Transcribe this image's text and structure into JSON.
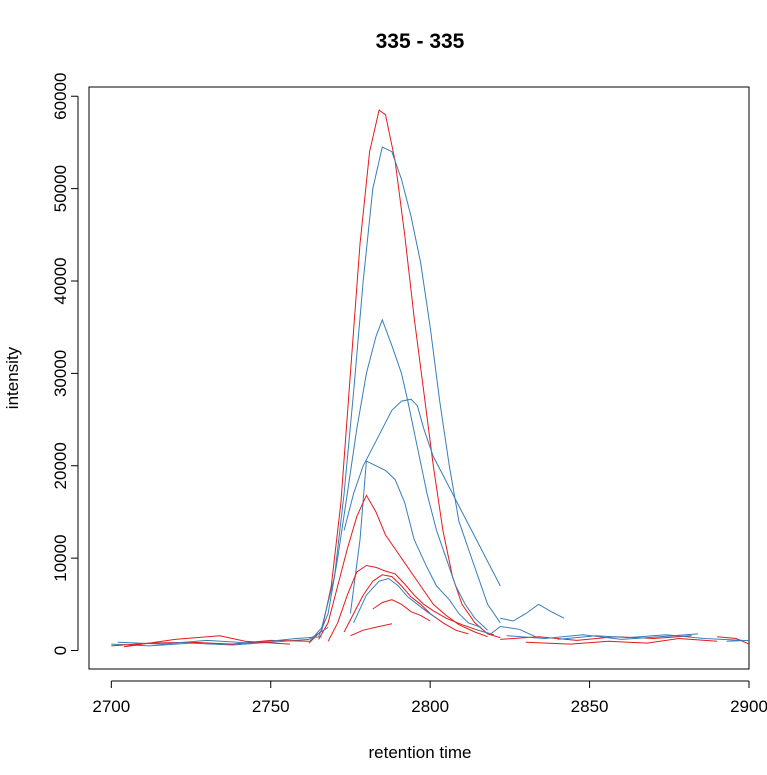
{
  "chart_data": {
    "type": "line",
    "title": "335 - 335",
    "xlabel": "retention time",
    "ylabel": "intensity",
    "xlim": [
      2693,
      2900
    ],
    "ylim": [
      -2000,
      61000
    ],
    "x_ticks": [
      2700,
      2750,
      2800,
      2850,
      2900
    ],
    "y_ticks": [
      0,
      10000,
      20000,
      30000,
      40000,
      50000,
      60000
    ],
    "colors": {
      "red": "#e41a1c",
      "blue": "#377eb8"
    },
    "series": [
      {
        "color": "#e41a1c",
        "points": [
          [
            2762,
            800
          ],
          [
            2766,
            2200
          ],
          [
            2769,
            7000
          ],
          [
            2772,
            16000
          ],
          [
            2775,
            30000
          ],
          [
            2778,
            44000
          ],
          [
            2781,
            54000
          ],
          [
            2784,
            58500
          ],
          [
            2786,
            58000
          ],
          [
            2789,
            53000
          ],
          [
            2792,
            45000
          ],
          [
            2795,
            36000
          ],
          [
            2798,
            28000
          ],
          [
            2801,
            20000
          ],
          [
            2804,
            13000
          ],
          [
            2807,
            8000
          ],
          [
            2810,
            5000
          ],
          [
            2814,
            3000
          ],
          [
            2818,
            1800
          ],
          [
            2822,
            1400
          ]
        ]
      },
      {
        "color": "#377eb8",
        "points": [
          [
            2762,
            900
          ],
          [
            2766,
            2500
          ],
          [
            2770,
            8000
          ],
          [
            2773,
            17000
          ],
          [
            2776,
            28000
          ],
          [
            2779,
            40000
          ],
          [
            2782,
            50000
          ],
          [
            2785,
            54500
          ],
          [
            2788,
            54000
          ],
          [
            2791,
            51000
          ],
          [
            2794,
            47000
          ],
          [
            2797,
            42000
          ],
          [
            2800,
            35000
          ],
          [
            2803,
            27000
          ],
          [
            2806,
            20000
          ],
          [
            2809,
            14000
          ],
          [
            2812,
            11000
          ],
          [
            2815,
            8000
          ],
          [
            2818,
            5000
          ],
          [
            2822,
            3000
          ]
        ]
      },
      {
        "color": "#377eb8",
        "points": [
          [
            2765,
            1500
          ],
          [
            2768,
            4000
          ],
          [
            2771,
            10000
          ],
          [
            2774,
            17000
          ],
          [
            2777,
            24000
          ],
          [
            2780,
            30000
          ],
          [
            2783,
            34000
          ],
          [
            2785,
            35800
          ],
          [
            2788,
            33000
          ],
          [
            2791,
            30000
          ],
          [
            2793,
            27000
          ],
          [
            2796,
            22000
          ],
          [
            2799,
            17000
          ],
          [
            2802,
            13000
          ],
          [
            2805,
            10000
          ],
          [
            2808,
            7000
          ],
          [
            2811,
            5000
          ],
          [
            2814,
            3500
          ],
          [
            2818,
            2200
          ]
        ]
      },
      {
        "color": "#377eb8",
        "points": [
          [
            2773,
            13000
          ],
          [
            2776,
            17000
          ],
          [
            2779,
            20000
          ],
          [
            2782,
            22000
          ],
          [
            2785,
            24000
          ],
          [
            2788,
            26000
          ],
          [
            2791,
            27000
          ],
          [
            2794,
            27200
          ],
          [
            2796,
            26500
          ],
          [
            2798,
            24000
          ],
          [
            2801,
            21000
          ],
          [
            2804,
            19000
          ],
          [
            2807,
            17000
          ],
          [
            2810,
            15000
          ],
          [
            2813,
            13000
          ],
          [
            2816,
            11000
          ],
          [
            2819,
            9000
          ],
          [
            2822,
            7000
          ]
        ]
      },
      {
        "color": "#377eb8",
        "points": [
          [
            2775,
            4000
          ],
          [
            2778,
            12000
          ],
          [
            2780,
            20500
          ],
          [
            2783,
            20000
          ],
          [
            2786,
            19500
          ],
          [
            2789,
            18500
          ],
          [
            2792,
            16000
          ],
          [
            2795,
            12000
          ],
          [
            2799,
            9000
          ],
          [
            2802,
            7000
          ],
          [
            2806,
            5500
          ],
          [
            2809,
            4000
          ],
          [
            2812,
            3000
          ],
          [
            2816,
            2500
          ]
        ]
      },
      {
        "color": "#e41a1c",
        "points": [
          [
            2765,
            1200
          ],
          [
            2768,
            3000
          ],
          [
            2771,
            7000
          ],
          [
            2774,
            11000
          ],
          [
            2777,
            14500
          ],
          [
            2780,
            16800
          ],
          [
            2783,
            15000
          ],
          [
            2786,
            12500
          ],
          [
            2789,
            11000
          ],
          [
            2792,
            9500
          ],
          [
            2795,
            8000
          ],
          [
            2798,
            6500
          ],
          [
            2801,
            5000
          ],
          [
            2805,
            3800
          ],
          [
            2809,
            2800
          ],
          [
            2814,
            2000
          ],
          [
            2818,
            1500
          ]
        ]
      },
      {
        "color": "#e41a1c",
        "points": [
          [
            2768,
            1000
          ],
          [
            2771,
            3000
          ],
          [
            2774,
            6000
          ],
          [
            2777,
            8500
          ],
          [
            2780,
            9200
          ],
          [
            2783,
            9000
          ],
          [
            2786,
            8600
          ],
          [
            2789,
            8300
          ],
          [
            2792,
            7200
          ],
          [
            2795,
            6000
          ],
          [
            2798,
            5000
          ],
          [
            2801,
            4300
          ],
          [
            2805,
            3500
          ],
          [
            2810,
            2800
          ],
          [
            2815,
            2200
          ],
          [
            2820,
            1700
          ]
        ]
      },
      {
        "color": "#e41a1c",
        "points": [
          [
            2773,
            2000
          ],
          [
            2776,
            4000
          ],
          [
            2779,
            6000
          ],
          [
            2782,
            7500
          ],
          [
            2785,
            8200
          ],
          [
            2788,
            8000
          ],
          [
            2791,
            7000
          ],
          [
            2794,
            5800
          ],
          [
            2797,
            5000
          ],
          [
            2800,
            4000
          ],
          [
            2804,
            3000
          ],
          [
            2808,
            2200
          ],
          [
            2812,
            1800
          ]
        ]
      },
      {
        "color": "#377eb8",
        "points": [
          [
            2776,
            3000
          ],
          [
            2780,
            6000
          ],
          [
            2784,
            7500
          ],
          [
            2787,
            7800
          ],
          [
            2790,
            7000
          ],
          [
            2793,
            5800
          ],
          [
            2796,
            5000
          ],
          [
            2799,
            4200
          ],
          [
            2802,
            3500
          ]
        ]
      },
      {
        "color": "#e41a1c",
        "points": [
          [
            2782,
            4500
          ],
          [
            2785,
            5200
          ],
          [
            2788,
            5500
          ],
          [
            2791,
            5000
          ],
          [
            2794,
            4200
          ],
          [
            2797,
            3800
          ],
          [
            2800,
            3200
          ]
        ]
      },
      {
        "color": "#e41a1c",
        "points": [
          [
            2775,
            1600
          ],
          [
            2779,
            2200
          ],
          [
            2784,
            2600
          ],
          [
            2788,
            2900
          ]
        ]
      },
      {
        "color": "#377eb8",
        "points": [
          [
            2815,
            2200
          ],
          [
            2819,
            1800
          ],
          [
            2822,
            2600
          ],
          [
            2828,
            2300
          ],
          [
            2833,
            1500
          ]
        ]
      },
      {
        "color": "#377eb8",
        "points": [
          [
            2822,
            3500
          ],
          [
            2826,
            3200
          ],
          [
            2830,
            4000
          ],
          [
            2834,
            5000
          ],
          [
            2838,
            4200
          ],
          [
            2842,
            3500
          ]
        ]
      },
      {
        "color": "#377eb8",
        "points": [
          [
            2700,
            700
          ],
          [
            2712,
            500
          ],
          [
            2725,
            800
          ],
          [
            2738,
            600
          ],
          [
            2750,
            900
          ],
          [
            2762,
            1200
          ],
          [
            2768,
            2500
          ]
        ]
      },
      {
        "color": "#e41a1c",
        "points": [
          [
            2700,
            500
          ],
          [
            2712,
            800
          ],
          [
            2725,
            900
          ],
          [
            2738,
            700
          ],
          [
            2750,
            1100
          ],
          [
            2762,
            1000
          ]
        ]
      },
      {
        "color": "#377eb8",
        "points": [
          [
            2702,
            900
          ],
          [
            2716,
            700
          ],
          [
            2730,
            1100
          ],
          [
            2744,
            800
          ],
          [
            2758,
            1300
          ],
          [
            2766,
            1500
          ]
        ]
      },
      {
        "color": "#e41a1c",
        "points": [
          [
            2704,
            400
          ],
          [
            2720,
            1200
          ],
          [
            2734,
            1600
          ],
          [
            2742,
            1000
          ],
          [
            2756,
            700
          ]
        ]
      },
      {
        "color": "#e41a1c",
        "points": [
          [
            2822,
            1200
          ],
          [
            2834,
            1500
          ],
          [
            2846,
            1100
          ],
          [
            2858,
            1500
          ],
          [
            2870,
            1300
          ],
          [
            2882,
            1600
          ]
        ]
      },
      {
        "color": "#377eb8",
        "points": [
          [
            2824,
            1600
          ],
          [
            2836,
            1300
          ],
          [
            2848,
            1700
          ],
          [
            2860,
            1200
          ],
          [
            2872,
            1500
          ],
          [
            2884,
            1800
          ]
        ]
      },
      {
        "color": "#e41a1c",
        "points": [
          [
            2830,
            900
          ],
          [
            2844,
            700
          ],
          [
            2856,
            1000
          ],
          [
            2868,
            800
          ],
          [
            2878,
            1300
          ],
          [
            2890,
            1000
          ]
        ]
      },
      {
        "color": "#377eb8",
        "points": [
          [
            2840,
            1200
          ],
          [
            2852,
            1600
          ],
          [
            2862,
            1400
          ],
          [
            2874,
            1700
          ],
          [
            2886,
            1300
          ],
          [
            2898,
            1100
          ]
        ]
      },
      {
        "color": "#e41a1c",
        "points": [
          [
            2890,
            1500
          ],
          [
            2896,
            1300
          ],
          [
            2900,
            700
          ]
        ]
      },
      {
        "color": "#377eb8",
        "points": [
          [
            2893,
            1000
          ],
          [
            2900,
            1100
          ]
        ]
      }
    ]
  }
}
